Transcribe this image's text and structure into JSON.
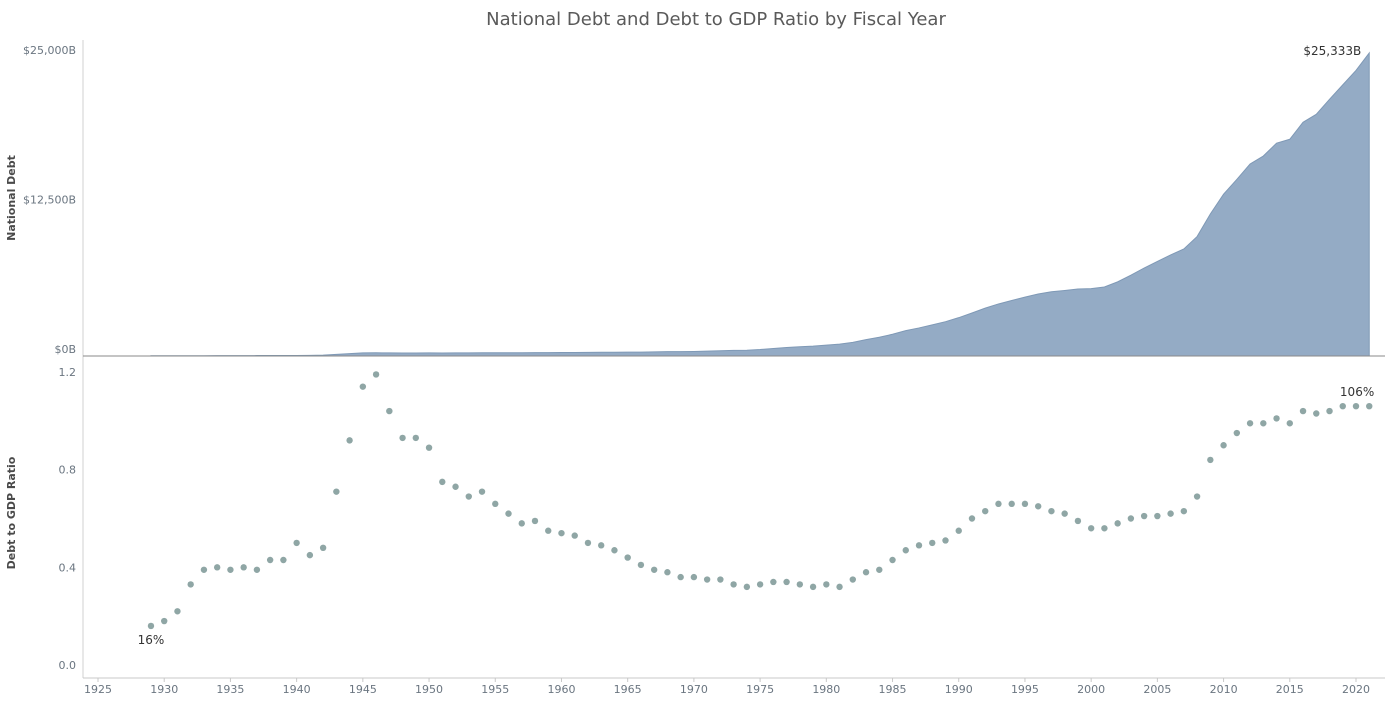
{
  "chart_data": [
    {
      "type": "area",
      "title": "National Debt and Debt to GDP Ratio by Fiscal Year",
      "ylabel": "National Debt",
      "xlabel": "",
      "ylim": [
        0,
        25000
      ],
      "yticks": [
        0,
        12500,
        25000
      ],
      "ytick_labels": [
        "$0B",
        "$12,500B",
        "$25,000B"
      ],
      "color": "#94abc5",
      "annotation": {
        "x": 2021,
        "label": "$25,333B"
      },
      "x": [
        1929,
        1930,
        1931,
        1932,
        1933,
        1934,
        1935,
        1936,
        1937,
        1938,
        1939,
        1940,
        1941,
        1942,
        1943,
        1944,
        1945,
        1946,
        1947,
        1948,
        1949,
        1950,
        1951,
        1952,
        1953,
        1954,
        1955,
        1956,
        1957,
        1958,
        1959,
        1960,
        1961,
        1962,
        1963,
        1964,
        1965,
        1966,
        1967,
        1968,
        1969,
        1970,
        1971,
        1972,
        1973,
        1974,
        1975,
        1976,
        1977,
        1978,
        1979,
        1980,
        1981,
        1982,
        1983,
        1984,
        1985,
        1986,
        1987,
        1988,
        1989,
        1990,
        1991,
        1992,
        1993,
        1994,
        1995,
        1996,
        1997,
        1998,
        1999,
        2000,
        2001,
        2002,
        2003,
        2004,
        2005,
        2006,
        2007,
        2008,
        2009,
        2010,
        2011,
        2012,
        2013,
        2014,
        2015,
        2016,
        2017,
        2018,
        2019,
        2020,
        2021
      ],
      "values": [
        17,
        16,
        17,
        19,
        23,
        27,
        29,
        34,
        37,
        37,
        40,
        43,
        49,
        72,
        137,
        201,
        259,
        269,
        258,
        252,
        253,
        257,
        255,
        259,
        266,
        271,
        274,
        273,
        272,
        280,
        287,
        291,
        293,
        303,
        310,
        316,
        322,
        328,
        340,
        369,
        366,
        381,
        408,
        436,
        466,
        484,
        542,
        629,
        706,
        777,
        830,
        909,
        995,
        1137,
        1372,
        1565,
        1817,
        2121,
        2346,
        2601,
        2868,
        3206,
        3598,
        4002,
        4351,
        4643,
        4921,
        5181,
        5369,
        5478,
        5606,
        5629,
        5770,
        6198,
        6760,
        7355,
        7905,
        8451,
        8951,
        9987,
        11876,
        13529,
        14764,
        16051,
        16719,
        17794,
        18120,
        19539,
        20206,
        21462,
        22669,
        23879,
        25333
      ]
    },
    {
      "type": "scatter",
      "ylabel": "Debt to GDP Ratio",
      "xlabel": "",
      "ylim": [
        0,
        1.2
      ],
      "yticks": [
        0,
        0.4,
        0.8,
        1.2
      ],
      "ytick_labels": [
        "0.0",
        "0.4",
        "0.8",
        "1.2"
      ],
      "xlim": [
        1925,
        2021
      ],
      "xticks": [
        1925,
        1930,
        1935,
        1940,
        1945,
        1950,
        1955,
        1960,
        1965,
        1970,
        1975,
        1980,
        1985,
        1990,
        1995,
        2000,
        2005,
        2010,
        2015,
        2020
      ],
      "color": "#8fa6a5",
      "annotations": [
        {
          "x": 1929,
          "label": "16%"
        },
        {
          "x": 2021,
          "label": "106%"
        }
      ],
      "x": [
        1929,
        1930,
        1931,
        1932,
        1933,
        1934,
        1935,
        1936,
        1937,
        1938,
        1939,
        1940,
        1941,
        1942,
        1943,
        1944,
        1945,
        1946,
        1947,
        1948,
        1949,
        1950,
        1951,
        1952,
        1953,
        1954,
        1955,
        1956,
        1957,
        1958,
        1959,
        1960,
        1961,
        1962,
        1963,
        1964,
        1965,
        1966,
        1967,
        1968,
        1969,
        1970,
        1971,
        1972,
        1973,
        1974,
        1975,
        1976,
        1977,
        1978,
        1979,
        1980,
        1981,
        1982,
        1983,
        1984,
        1985,
        1986,
        1987,
        1988,
        1989,
        1990,
        1991,
        1992,
        1993,
        1994,
        1995,
        1996,
        1997,
        1998,
        1999,
        2000,
        2001,
        2002,
        2003,
        2004,
        2005,
        2006,
        2007,
        2008,
        2009,
        2010,
        2011,
        2012,
        2013,
        2014,
        2015,
        2016,
        2017,
        2018,
        2019,
        2020,
        2021
      ],
      "values": [
        0.16,
        0.18,
        0.22,
        0.33,
        0.39,
        0.4,
        0.39,
        0.4,
        0.39,
        0.43,
        0.43,
        0.5,
        0.45,
        0.48,
        0.71,
        0.92,
        1.14,
        1.19,
        1.04,
        0.93,
        0.93,
        0.89,
        0.75,
        0.73,
        0.69,
        0.71,
        0.66,
        0.62,
        0.58,
        0.59,
        0.55,
        0.54,
        0.53,
        0.5,
        0.49,
        0.47,
        0.44,
        0.41,
        0.39,
        0.38,
        0.36,
        0.36,
        0.35,
        0.35,
        0.33,
        0.32,
        0.33,
        0.34,
        0.34,
        0.33,
        0.32,
        0.33,
        0.32,
        0.35,
        0.38,
        0.39,
        0.43,
        0.47,
        0.49,
        0.5,
        0.51,
        0.55,
        0.6,
        0.63,
        0.66,
        0.66,
        0.66,
        0.65,
        0.63,
        0.62,
        0.59,
        0.56,
        0.56,
        0.58,
        0.6,
        0.61,
        0.61,
        0.62,
        0.63,
        0.69,
        0.84,
        0.9,
        0.95,
        0.99,
        0.99,
        1.01,
        0.99,
        1.04,
        1.03,
        1.04,
        1.06,
        1.06,
        1.06
      ]
    }
  ]
}
